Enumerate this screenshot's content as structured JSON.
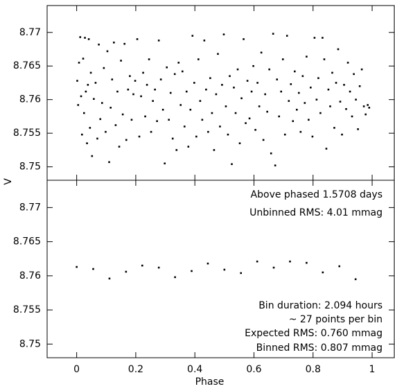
{
  "chart_data": [
    {
      "type": "scatter",
      "ylabel": "V",
      "color": "#000000",
      "xlim": [
        -0.1,
        1.075
      ],
      "ylim": [
        8.748,
        8.774
      ],
      "xticks": [
        0,
        0.2,
        0.4,
        0.6,
        0.8,
        1
      ],
      "yticks": [
        8.75,
        8.755,
        8.76,
        8.765,
        8.77
      ],
      "x": [
        0.002,
        0.005,
        0.008,
        0.012,
        0.015,
        0.018,
        0.022,
        0.025,
        0.028,
        0.031,
        0.035,
        0.038,
        0.041,
        0.045,
        0.048,
        0.052,
        0.058,
        0.064,
        0.07,
        0.075,
        0.08,
        0.086,
        0.092,
        0.098,
        0.104,
        0.11,
        0.115,
        0.12,
        0.126,
        0.132,
        0.138,
        0.144,
        0.15,
        0.156,
        0.162,
        0.168,
        0.174,
        0.18,
        0.186,
        0.192,
        0.198,
        0.205,
        0.212,
        0.218,
        0.225,
        0.232,
        0.238,
        0.245,
        0.252,
        0.258,
        0.265,
        0.272,
        0.278,
        0.285,
        0.292,
        0.298,
        0.305,
        0.312,
        0.318,
        0.325,
        0.332,
        0.338,
        0.345,
        0.352,
        0.358,
        0.365,
        0.372,
        0.378,
        0.385,
        0.392,
        0.398,
        0.405,
        0.412,
        0.418,
        0.425,
        0.432,
        0.438,
        0.445,
        0.452,
        0.458,
        0.465,
        0.472,
        0.478,
        0.485,
        0.492,
        0.498,
        0.505,
        0.512,
        0.518,
        0.525,
        0.532,
        0.538,
        0.545,
        0.552,
        0.558,
        0.565,
        0.572,
        0.578,
        0.585,
        0.592,
        0.598,
        0.605,
        0.612,
        0.618,
        0.625,
        0.632,
        0.638,
        0.645,
        0.652,
        0.658,
        0.665,
        0.672,
        0.678,
        0.685,
        0.692,
        0.698,
        0.705,
        0.712,
        0.718,
        0.725,
        0.732,
        0.738,
        0.745,
        0.752,
        0.758,
        0.765,
        0.772,
        0.778,
        0.785,
        0.792,
        0.798,
        0.805,
        0.812,
        0.818,
        0.825,
        0.832,
        0.838,
        0.845,
        0.852,
        0.858,
        0.865,
        0.872,
        0.878,
        0.885,
        0.892,
        0.898,
        0.905,
        0.912,
        0.918,
        0.925,
        0.932,
        0.938,
        0.945,
        0.952,
        0.958,
        0.965,
        0.972,
        0.978,
        0.985,
        0.99
      ],
      "values": [
        8.7628,
        8.7592,
        8.7655,
        8.7693,
        8.7605,
        8.7548,
        8.7661,
        8.758,
        8.7692,
        8.7612,
        8.7535,
        8.7622,
        8.769,
        8.7558,
        8.764,
        8.7516,
        8.7601,
        8.7625,
        8.7542,
        8.7682,
        8.7571,
        8.7595,
        8.7647,
        8.7552,
        8.7672,
        8.7507,
        8.7588,
        8.763,
        8.7685,
        8.7562,
        8.7612,
        8.753,
        8.7658,
        8.7578,
        8.7683,
        8.754,
        8.7615,
        8.7635,
        8.757,
        8.7608,
        8.7628,
        8.769,
        8.7545,
        8.7605,
        8.764,
        8.7575,
        8.7622,
        8.766,
        8.7552,
        8.7598,
        8.7615,
        8.7568,
        8.7688,
        8.763,
        8.7585,
        8.7505,
        8.7648,
        8.757,
        8.761,
        8.7542,
        8.7638,
        8.7525,
        8.7655,
        8.7592,
        8.7642,
        8.756,
        8.7612,
        8.753,
        8.7585,
        8.7695,
        8.7625,
        8.7545,
        8.766,
        8.7598,
        8.757,
        8.7688,
        8.7615,
        8.7552,
        8.7632,
        8.758,
        8.7525,
        8.7608,
        8.7668,
        8.756,
        8.7622,
        8.7697,
        8.759,
        8.7548,
        8.7635,
        8.7504,
        8.7618,
        8.758,
        8.7645,
        8.7535,
        8.7602,
        8.769,
        8.7565,
        8.7628,
        8.7572,
        8.7612,
        8.765,
        8.7555,
        8.7625,
        8.759,
        8.767,
        8.754,
        8.7608,
        8.7582,
        8.7645,
        8.752,
        8.7698,
        8.7502,
        8.763,
        8.7575,
        8.7612,
        8.766,
        8.7548,
        8.7695,
        8.7598,
        8.7623,
        8.7568,
        8.7642,
        8.7585,
        8.761,
        8.7552,
        8.7635,
        8.7595,
        8.7664,
        8.757,
        8.7618,
        8.7545,
        8.7692,
        8.76,
        8.7632,
        8.758,
        8.7692,
        8.766,
        8.7527,
        8.7615,
        8.759,
        8.764,
        8.7558,
        8.7625,
        8.7675,
        8.7597,
        8.7548,
        8.7622,
        8.7586,
        8.7655,
        8.7612,
        8.7575,
        8.7638,
        8.76,
        8.7556,
        8.762,
        8.7645,
        8.759,
        8.7578,
        8.7592,
        8.7588
      ]
    },
    {
      "type": "scatter",
      "xlabel": "Phase",
      "color": "#000000",
      "xlim": [
        -0.1,
        1.075
      ],
      "ylim": [
        8.748,
        8.774
      ],
      "xticks": [
        0,
        0.2,
        0.4,
        0.6,
        0.8,
        1
      ],
      "yticks": [
        8.75,
        8.755,
        8.76,
        8.765,
        8.77
      ],
      "x": [
        0,
        0.056,
        0.111,
        0.167,
        0.222,
        0.278,
        0.333,
        0.389,
        0.444,
        0.5,
        0.556,
        0.611,
        0.667,
        0.722,
        0.778,
        0.833,
        0.889,
        0.944
      ],
      "values": [
        8.7613,
        8.761,
        8.7596,
        8.7606,
        8.7615,
        8.7612,
        8.7598,
        8.7607,
        8.7618,
        8.7609,
        8.7604,
        8.7621,
        8.7612,
        8.7621,
        8.7619,
        8.7605,
        8.7614,
        8.7595
      ],
      "annotations": [
        "Above phased 1.5708 days",
        "Unbinned RMS: 4.01 mmag",
        "Bin duration: 2.094 hours",
        "~ 27 points per bin",
        "Expected RMS: 0.760 mmag",
        "Binned RMS: 0.807 mmag"
      ]
    }
  ]
}
